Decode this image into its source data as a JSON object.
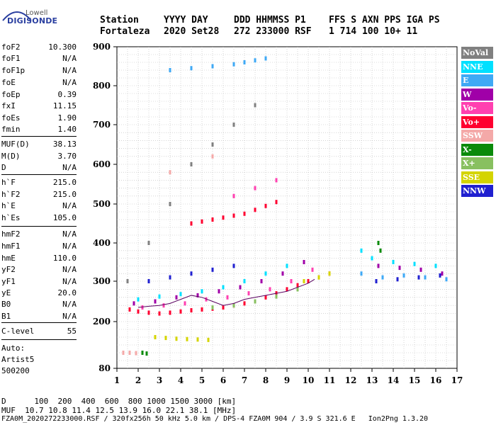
{
  "logo": {
    "maker": "Lowell",
    "product": "DIGISONDE"
  },
  "header": {
    "labels": [
      "Station",
      "YYYY DAY",
      "DDD HHMMSS P1",
      "FFS S AXN PPS IGA PS"
    ],
    "values": [
      "Fortaleza",
      "2020 Set28",
      "272 233000 RSF",
      "1 714 100 10+ 11"
    ]
  },
  "params": [
    {
      "label": "foF2",
      "value": "10.300"
    },
    {
      "label": "foF1",
      "value": "N/A"
    },
    {
      "label": "foF1p",
      "value": "N/A"
    },
    {
      "label": "foE",
      "value": "N/A"
    },
    {
      "label": "foEp",
      "value": "0.39"
    },
    {
      "label": "fxI",
      "value": "11.15"
    },
    {
      "label": "foEs",
      "value": "1.90"
    },
    {
      "label": "fmin",
      "value": "1.40"
    },
    {
      "label": "MUF(D)",
      "value": "38.13"
    },
    {
      "label": "M(D)",
      "value": "3.70"
    },
    {
      "label": "D",
      "value": "N/A"
    },
    {
      "label": "h`F",
      "value": "215.0"
    },
    {
      "label": "h`F2",
      "value": "215.0"
    },
    {
      "label": "h`E",
      "value": "N/A"
    },
    {
      "label": "h`Es",
      "value": "105.0"
    },
    {
      "label": "hmF2",
      "value": "N/A"
    },
    {
      "label": "hmF1",
      "value": "N/A"
    },
    {
      "label": "hmE",
      "value": "110.0"
    },
    {
      "label": "yF2",
      "value": "N/A"
    },
    {
      "label": "yF1",
      "value": "N/A"
    },
    {
      "label": "yE",
      "value": "20.0"
    },
    {
      "label": "B0",
      "value": "N/A"
    },
    {
      "label": "B1",
      "value": "N/A"
    },
    {
      "label": "C-level",
      "value": "55"
    }
  ],
  "auto": {
    "label": "Auto:",
    "program": "Artist5",
    "version": "500200"
  },
  "footer": {
    "d_row": "D      100  200  400  600  800 1000 1500 3000 [km]",
    "muf_row": "MUF  10.7 10.8 11.4 12.5 13.9 16.0 22.1 38.1 [MHz]",
    "info": "FZA0M_2020272233000.RSF / 320fx256h 50 kHz 5.0 km / DPS-4 FZA0M 904 / 3.9 S 321.6 E   Ion2Png 1.3.20"
  },
  "legend": [
    {
      "label": "NoVal",
      "bg": "#808080",
      "fg": "#ffffff"
    },
    {
      "label": "NNE",
      "bg": "#00e0ff",
      "fg": "#ffffff"
    },
    {
      "label": "E",
      "bg": "#3fa9f5",
      "fg": "#ffffff"
    },
    {
      "label": "W",
      "bg": "#a000a8",
      "fg": "#ffffff"
    },
    {
      "label": "Vo-",
      "bg": "#ff40b0",
      "fg": "#ffffff"
    },
    {
      "label": "Vo+",
      "bg": "#ff0030",
      "fg": "#ffffff"
    },
    {
      "label": "SSW",
      "bg": "#f4a9a8",
      "fg": "#ffffff"
    },
    {
      "label": "X-",
      "bg": "#0a8a0a",
      "fg": "#ffffff"
    },
    {
      "label": "X+",
      "bg": "#88c060",
      "fg": "#ffffff"
    },
    {
      "label": "SSE",
      "bg": "#d4d400",
      "fg": "#ffffff"
    },
    {
      "label": "NNW",
      "bg": "#2020d0",
      "fg": "#ffffff"
    }
  ],
  "chart_data": {
    "type": "scatter",
    "title": "",
    "xlabel": "",
    "ylabel": "",
    "xlim": [
      1,
      17
    ],
    "ylim": [
      80,
      900
    ],
    "x_ticks": [
      1,
      2,
      3,
      4,
      5,
      6,
      7,
      8,
      9,
      10,
      11,
      12,
      13,
      14,
      15,
      16,
      17
    ],
    "y_ticks": [
      80,
      200,
      300,
      400,
      500,
      600,
      700,
      800,
      900
    ],
    "grid": true,
    "series": [
      {
        "name": "Vo+",
        "color": "#ff0030",
        "points": [
          [
            1.6,
            230
          ],
          [
            2.0,
            225
          ],
          [
            2.5,
            222
          ],
          [
            3.0,
            220
          ],
          [
            3.5,
            222
          ],
          [
            4.0,
            225
          ],
          [
            4.5,
            228
          ],
          [
            5.0,
            230
          ],
          [
            5.5,
            232
          ],
          [
            6.0,
            235
          ],
          [
            6.5,
            240
          ],
          [
            7.0,
            245
          ],
          [
            7.5,
            250
          ],
          [
            8.0,
            260
          ],
          [
            8.5,
            270
          ],
          [
            9.0,
            280
          ],
          [
            9.5,
            290
          ],
          [
            10.0,
            300
          ],
          [
            10.5,
            310
          ],
          [
            11.0,
            320
          ],
          [
            4.5,
            450
          ],
          [
            5.0,
            455
          ],
          [
            5.5,
            460
          ],
          [
            6.0,
            465
          ],
          [
            6.5,
            470
          ],
          [
            7.0,
            475
          ],
          [
            7.5,
            485
          ],
          [
            8.0,
            495
          ],
          [
            8.5,
            505
          ]
        ]
      },
      {
        "name": "Vo-",
        "color": "#ff40b0",
        "points": [
          [
            2.2,
            235
          ],
          [
            3.2,
            240
          ],
          [
            4.2,
            245
          ],
          [
            5.2,
            255
          ],
          [
            6.2,
            260
          ],
          [
            7.2,
            270
          ],
          [
            8.2,
            280
          ],
          [
            9.2,
            300
          ],
          [
            10.2,
            330
          ],
          [
            6.5,
            520
          ],
          [
            7.5,
            540
          ],
          [
            8.5,
            560
          ]
        ]
      },
      {
        "name": "W",
        "color": "#a000a8",
        "points": [
          [
            1.8,
            245
          ],
          [
            2.8,
            250
          ],
          [
            3.8,
            260
          ],
          [
            4.8,
            265
          ],
          [
            5.8,
            275
          ],
          [
            6.8,
            285
          ],
          [
            7.8,
            300
          ],
          [
            8.8,
            320
          ],
          [
            9.8,
            350
          ],
          [
            13.3,
            340
          ],
          [
            14.3,
            335
          ],
          [
            15.3,
            330
          ],
          [
            16.3,
            320
          ]
        ]
      },
      {
        "name": "NNE",
        "color": "#00e0ff",
        "points": [
          [
            2.0,
            255
          ],
          [
            3.0,
            262
          ],
          [
            4.0,
            268
          ],
          [
            5.0,
            275
          ],
          [
            6.0,
            285
          ],
          [
            7.0,
            300
          ],
          [
            8.0,
            320
          ],
          [
            9.0,
            340
          ],
          [
            12.5,
            380
          ],
          [
            13.0,
            360
          ],
          [
            14.0,
            350
          ],
          [
            15.0,
            345
          ],
          [
            16.0,
            340
          ]
        ]
      },
      {
        "name": "E",
        "color": "#3fa9f5",
        "points": [
          [
            3.5,
            840
          ],
          [
            4.5,
            845
          ],
          [
            5.5,
            850
          ],
          [
            6.5,
            855
          ],
          [
            7.0,
            860
          ],
          [
            7.5,
            865
          ],
          [
            8.0,
            870
          ],
          [
            12.5,
            320
          ],
          [
            13.5,
            310
          ],
          [
            14.5,
            315
          ],
          [
            15.5,
            310
          ],
          [
            16.5,
            305
          ]
        ]
      },
      {
        "name": "NNW",
        "color": "#2020d0",
        "points": [
          [
            2.5,
            300
          ],
          [
            3.5,
            310
          ],
          [
            4.5,
            320
          ],
          [
            5.5,
            330
          ],
          [
            6.5,
            340
          ],
          [
            13.2,
            300
          ],
          [
            14.2,
            305
          ],
          [
            15.2,
            310
          ],
          [
            16.2,
            315
          ]
        ]
      },
      {
        "name": "SSE",
        "color": "#d4d400",
        "points": [
          [
            2.8,
            160
          ],
          [
            3.3,
            158
          ],
          [
            3.8,
            156
          ],
          [
            4.3,
            155
          ],
          [
            4.8,
            154
          ],
          [
            5.3,
            153
          ],
          [
            9.8,
            300
          ],
          [
            10.5,
            310
          ],
          [
            11.0,
            320
          ]
        ]
      },
      {
        "name": "X+",
        "color": "#88c060",
        "points": [
          [
            5.5,
            235
          ],
          [
            6.5,
            240
          ],
          [
            7.5,
            250
          ],
          [
            8.5,
            262
          ],
          [
            9.5,
            280
          ]
        ]
      },
      {
        "name": "X-",
        "color": "#0a8a0a",
        "points": [
          [
            2.2,
            120
          ],
          [
            2.4,
            118
          ],
          [
            13.3,
            400
          ],
          [
            13.4,
            380
          ]
        ]
      },
      {
        "name": "SSW",
        "color": "#f4a9a8",
        "points": [
          [
            1.3,
            120
          ],
          [
            1.6,
            120
          ],
          [
            1.9,
            119
          ],
          [
            3.5,
            580
          ],
          [
            4.5,
            600
          ],
          [
            5.5,
            620
          ]
        ]
      },
      {
        "name": "NoVal",
        "color": "#808080",
        "points": [
          [
            1.5,
            300
          ],
          [
            2.5,
            400
          ],
          [
            3.5,
            500
          ],
          [
            4.5,
            600
          ],
          [
            5.5,
            650
          ],
          [
            6.5,
            700
          ],
          [
            7.5,
            750
          ]
        ]
      }
    ],
    "trace": {
      "name": "",
      "color": "#5a0060",
      "points": [
        [
          2.0,
          235
        ],
        [
          2.5,
          238
        ],
        [
          3.0,
          240
        ],
        [
          3.5,
          245
        ],
        [
          4.0,
          255
        ],
        [
          4.5,
          265
        ],
        [
          5.0,
          260
        ],
        [
          5.5,
          250
        ],
        [
          6.0,
          240
        ],
        [
          6.5,
          245
        ],
        [
          7.0,
          255
        ],
        [
          7.5,
          260
        ],
        [
          8.0,
          265
        ],
        [
          8.5,
          270
        ],
        [
          9.0,
          275
        ],
        [
          9.5,
          285
        ],
        [
          10.0,
          295
        ],
        [
          10.3,
          305
        ]
      ]
    }
  }
}
